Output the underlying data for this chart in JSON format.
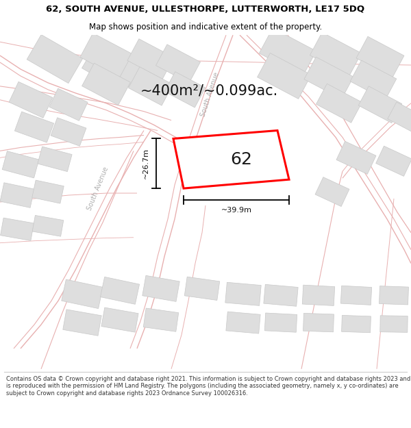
{
  "title": "62, SOUTH AVENUE, ULLESTHORPE, LUTTERWORTH, LE17 5DQ",
  "subtitle": "Map shows position and indicative extent of the property.",
  "area_label": "~400m²/~0.099ac.",
  "plot_number": "62",
  "width_label": "~39.9m",
  "height_label": "~26.7m",
  "footer": "Contains OS data © Crown copyright and database right 2021. This information is subject to Crown copyright and database rights 2023 and is reproduced with the permission of HM Land Registry. The polygons (including the associated geometry, namely x, y co-ordinates) are subject to Crown copyright and database rights 2023 Ordnance Survey 100026316.",
  "bg_color": "#ffffff",
  "map_bg": "#ffffff",
  "road_outline_color": "#e8b0b0",
  "road_fill_color": "#f5f5f5",
  "building_color": "#dedede",
  "building_edge_color": "#c8c8c8",
  "plot_color": "#ff0000",
  "dim_color": "#000000",
  "title_color": "#000000",
  "street_label_color": "#b0b0b0",
  "footer_color": "#333333",
  "title_fontsize": 9.5,
  "subtitle_fontsize": 8.5,
  "area_fontsize": 15,
  "plot_num_fontsize": 18,
  "dim_fontsize": 8,
  "street_fontsize": 7,
  "footer_fontsize": 6.0
}
